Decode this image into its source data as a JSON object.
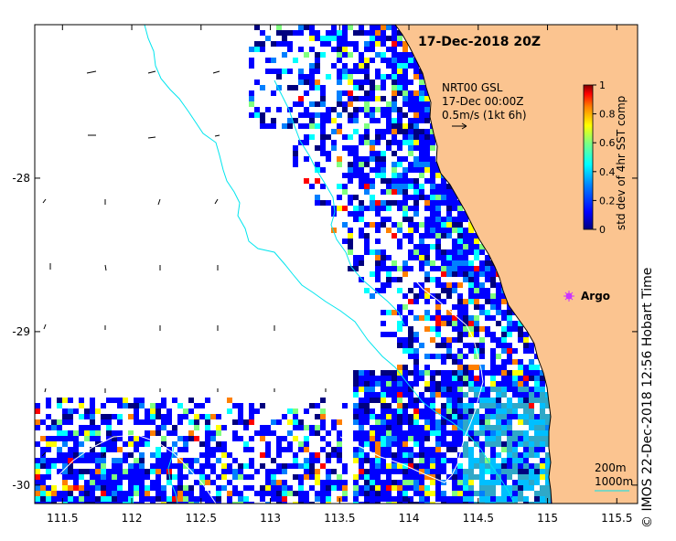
{
  "map": {
    "date_label": "17-Dec-2018 20Z",
    "current_legend": {
      "line1": "NRT00 GSL",
      "line2": "17-Dec 00:00Z",
      "line3": "0.5m/s (1kt 6h)"
    },
    "colorbar": {
      "title": "std dev of 4hr SST comp",
      "ticks": [
        "0",
        "0.2",
        "0.4",
        "0.6",
        "0.8",
        "1"
      ],
      "colors": [
        "#00007f",
        "#0000ff",
        "#007fff",
        "#00ffff",
        "#7fff7f",
        "#ffff00",
        "#ff7f00",
        "#ff0000",
        "#7f0000"
      ]
    },
    "argo": {
      "label": "Argo",
      "color": "#cc33ff"
    },
    "isobaths": {
      "label_200": "200m",
      "label_1000": "1000m"
    },
    "x_ticks": [
      "111.5",
      "112",
      "112.5",
      "113",
      "113.5",
      "114",
      "114.5",
      "115",
      "115.5"
    ],
    "y_ticks": [
      "-28",
      "-29",
      "-30"
    ],
    "x_range": [
      111.3,
      115.65
    ],
    "y_range": [
      -30.12,
      -27.0
    ],
    "copyright": "©  IMOS 22-Dec-2018 12:56 Hobart Time",
    "colors": {
      "land": "#fbc490",
      "isobath_200": "#00e5ee",
      "isobath_1000": "#ffffff",
      "ocean_bg": "#ffffff"
    }
  }
}
